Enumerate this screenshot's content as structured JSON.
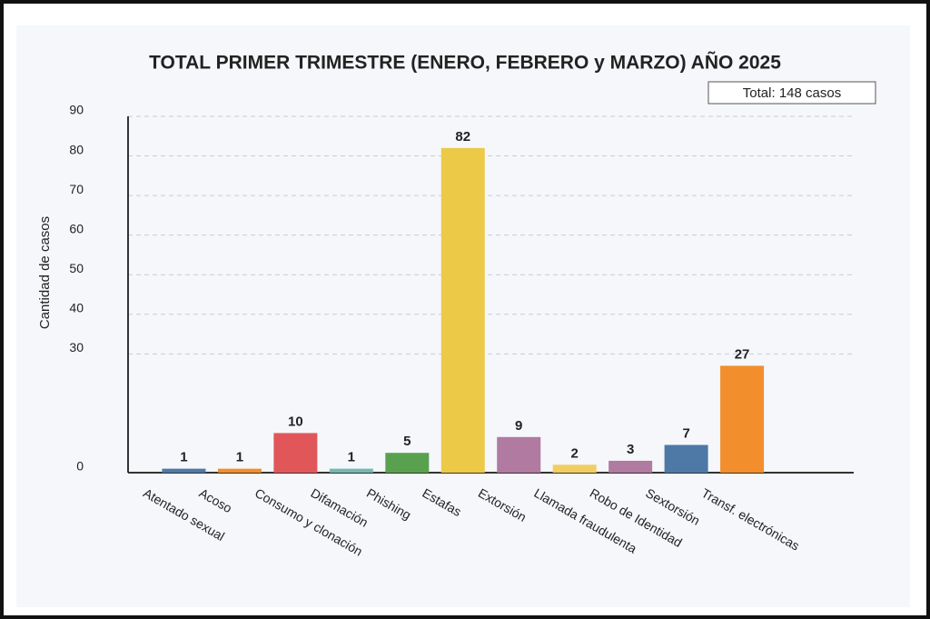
{
  "chart_data": {
    "type": "bar",
    "title": "TOTAL PRIMER TRIMESTRE (ENERO, FEBRERO y MARZO) AÑO 2025",
    "annotation": "Total: 148 casos",
    "y_label": "Cantidad de casos",
    "categories": [
      "Atentado sexual",
      "Acoso",
      "Consumo y clonación",
      "Difamación",
      "Phishing",
      "Estafas",
      "Extorsión",
      "Llamada fraudulenta",
      "Robo de Identidad",
      "Sextorsión",
      "Transf. electrónicas"
    ],
    "values": [
      1,
      1,
      10,
      1,
      5,
      82,
      9,
      2,
      3,
      7,
      27
    ],
    "colors": [
      "#4e79a7",
      "#f28e2b",
      "#e15759",
      "#76b7b2",
      "#59a14f",
      "#edc948",
      "#b07aa1",
      "#f1ce63",
      "#b07aa1",
      "#4e79a7",
      "#f28e2b"
    ],
    "ylim": [
      0,
      90
    ],
    "yticks": [
      0,
      30,
      40,
      50,
      60,
      70,
      80,
      90
    ],
    "grid": true
  }
}
